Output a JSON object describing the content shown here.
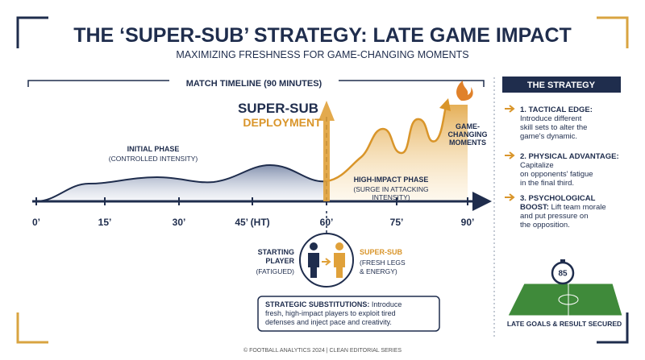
{
  "header": {
    "title": "THE ‘SUPER-SUB’ STRATEGY: LATE GAME IMPACT",
    "subtitle": "MAXIMIZING FRESHNESS FOR GAME-CHANGING MOMENTS"
  },
  "timeline": {
    "title": "MATCH TIMELINE (90 MINUTES)",
    "deployment": [
      "SUPER-SUB",
      "DEPLOYMENT"
    ],
    "initial_phase": {
      "title": "INITIAL PHASE",
      "note": "(CONTROLLED INTENSITY)"
    },
    "high_impact_phase": {
      "title": "HIGH-IMPACT PHASE",
      "note": [
        "(SURGE IN ATTACKING",
        "INTENSITY)"
      ]
    },
    "game_changing": [
      "GAME-",
      "CHANGING",
      "MOMENTS"
    ],
    "ticks": [
      "0’",
      "15’",
      "30’",
      "45’ (HT)",
      "60’",
      "75’",
      "90’"
    ]
  },
  "substitution": {
    "starting": {
      "title": [
        "STARTING",
        "PLAYER"
      ],
      "note": "(FATIGUED)"
    },
    "super_sub": {
      "title": "SUPER-SUB",
      "note": [
        "(FRESH LEGS",
        "& ENERGY)"
      ]
    },
    "callout": {
      "bold": "STRATEGIC SUBSTITUTIONS:",
      "lines": [
        " Introduce",
        "fresh, high-impact players to exploit tired",
        "defenses and inject pace and creativity."
      ]
    }
  },
  "strategy": {
    "title": "THE STRATEGY",
    "items": [
      {
        "title": "1. TACTICAL EDGE:",
        "lines": [
          "Introduce different",
          "skill sets to alter the",
          "game's dynamic."
        ]
      },
      {
        "title": "2. PHYSICAL ADVANTAGE:",
        "lines": [
          "Capitalize",
          "on opponents' fatigue",
          "in the final third."
        ]
      },
      {
        "title": [
          "3. PSYCHOLOGICAL",
          "BOOST:"
        ],
        "lines": [
          " Lift team morale",
          "and put pressure on",
          "the opposition."
        ]
      }
    ],
    "clock": "85",
    "caption": "LATE GOALS & RESULT SECURED"
  },
  "footer": "© FOOTBALL ANALYTICS 2024 | CLEAN EDITORIAL SERIES"
}
